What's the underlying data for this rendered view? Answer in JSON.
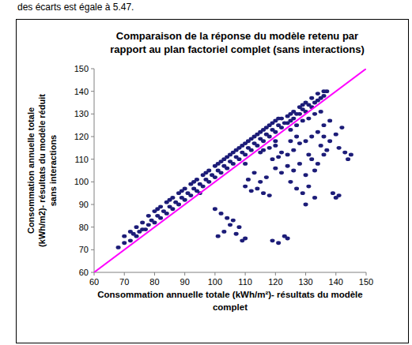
{
  "chart_data": {
    "type": "scatter",
    "annotations": [
      "des écarts est égale à 5.47."
    ],
    "title": [
      "Comparaison de la réponse du modèle retenu par",
      "rapport au plan factoriel complet (sans interactions)"
    ],
    "x_label": [
      "Consommation annuelle totale (kWh/m²)- résultats du modèle",
      "complet"
    ],
    "y_label": [
      "Consommation annuelle totale",
      "(kWh/m2)- résultats du modèle réduit",
      "sans interactions"
    ],
    "xlim": [
      60,
      150
    ],
    "xticks": [
      60,
      70,
      80,
      90,
      100,
      110,
      120,
      130,
      140,
      150
    ],
    "ylim": [
      60,
      150
    ],
    "yticks": [
      60,
      70,
      80,
      90,
      100,
      110,
      120,
      130,
      140,
      150
    ],
    "grid": false,
    "series": [
      {
        "type": "scatter",
        "color": "#1c1c78",
        "marker": "circle",
        "x": [
          68,
          70,
          70,
          72,
          72,
          74,
          74,
          75,
          76,
          77,
          78,
          78,
          79,
          80,
          80,
          81,
          82,
          82,
          83,
          84,
          84,
          85,
          86,
          86,
          87,
          88,
          88,
          89,
          90,
          90,
          91,
          92,
          92,
          93,
          94,
          94,
          95,
          96,
          96,
          97,
          98,
          98,
          99,
          100,
          100,
          101,
          102,
          102,
          103,
          104,
          104,
          105,
          106,
          106,
          107,
          108,
          108,
          109,
          110,
          110,
          111,
          112,
          112,
          113,
          114,
          114,
          115,
          116,
          116,
          117,
          118,
          118,
          119,
          120,
          120,
          121,
          122,
          122,
          123,
          124,
          124,
          125,
          126,
          126,
          127,
          128,
          128,
          129,
          130,
          130,
          131,
          132,
          132,
          133,
          134,
          134,
          135,
          136,
          137,
          136,
          73,
          76,
          81,
          85,
          89,
          93,
          97,
          101,
          105,
          109,
          113,
          117,
          121,
          125,
          129,
          103,
          107,
          111,
          115,
          119,
          125,
          127,
          129,
          131,
          133,
          135,
          120,
          115,
          110,
          95,
          116,
          118,
          120,
          122,
          124,
          126,
          128,
          130,
          132,
          134,
          136,
          138,
          136,
          138,
          140,
          142,
          141,
          143,
          145,
          144,
          120,
          122,
          124,
          126,
          128,
          130,
          132,
          134,
          136,
          125,
          110,
          112,
          114,
          116,
          118,
          127,
          129,
          131,
          133,
          130,
          100,
          102,
          104,
          105,
          106,
          108,
          103,
          101,
          107,
          109,
          110,
          119,
          121,
          123,
          124,
          139,
          140,
          141,
          115,
          117,
          113,
          111,
          119,
          121,
          127,
          125,
          135,
          137,
          131,
          133
        ],
        "values": [
          71,
          73,
          76,
          74,
          78,
          76,
          80,
          78,
          82,
          79,
          81,
          85,
          83,
          82,
          87,
          85,
          84,
          89,
          87,
          86,
          91,
          89,
          88,
          93,
          91,
          90,
          95,
          93,
          92,
          97,
          95,
          94,
          99,
          97,
          96,
          101,
          99,
          98,
          103,
          101,
          100,
          105,
          103,
          102,
          107,
          105,
          104,
          109,
          107,
          106,
          111,
          109,
          108,
          113,
          111,
          110,
          115,
          113,
          112,
          117,
          115,
          114,
          119,
          117,
          116,
          121,
          119,
          118,
          123,
          121,
          120,
          125,
          123,
          122,
          127,
          125,
          124,
          128,
          126,
          126,
          129,
          127,
          128,
          131,
          130,
          130,
          133,
          132,
          131,
          135,
          134,
          133,
          137,
          135,
          136,
          139,
          137,
          138,
          140,
          140,
          77,
          79,
          88,
          92,
          96,
          100,
          104,
          108,
          112,
          116,
          120,
          124,
          128,
          130,
          134,
          110,
          114,
          118,
          122,
          126,
          123,
          125,
          127,
          128,
          130,
          131,
          118,
          113,
          108,
          95,
          114,
          115,
          116,
          113,
          112,
          114,
          117,
          118,
          120,
          122,
          125,
          127,
          120,
          118,
          121,
          124,
          115,
          113,
          112,
          110,
          106,
          104,
          107,
          105,
          108,
          103,
          110,
          108,
          112,
          100,
          98,
          96,
          97,
          95,
          94,
          97,
          95,
          98,
          93,
          90,
          88,
          86,
          84,
          81,
          83,
          80,
          78,
          76,
          77,
          74,
          75,
          74,
          73,
          76,
          75,
          95,
          93,
          94,
          100,
          102,
          104,
          101,
          110,
          111,
          120,
          118,
          116,
          114,
          112,
          105
        ]
      },
      {
        "type": "line",
        "color": "#ff00ff",
        "line_style": "solid",
        "x": [
          60,
          150
        ],
        "values": [
          60,
          150
        ]
      }
    ]
  }
}
